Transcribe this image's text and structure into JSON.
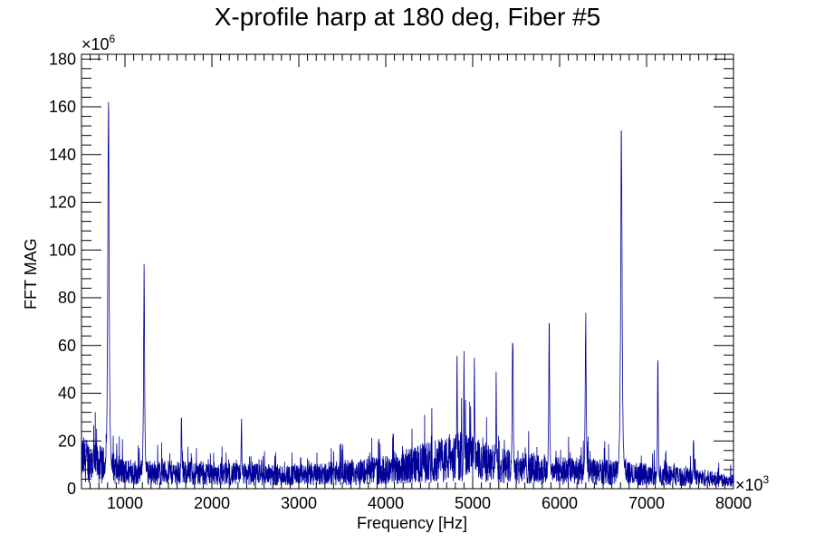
{
  "chart_data": {
    "type": "line",
    "title": "X-profile harp at 180 deg, Fiber #5",
    "xlabel": "Frequency [Hz]",
    "ylabel": "FFT MAG",
    "xlim": [
      500,
      8000
    ],
    "ylim": [
      0,
      182
    ],
    "x_multiplier": "×10",
    "x_multiplier_exp": "3",
    "y_multiplier": "×10",
    "y_multiplier_exp": "6",
    "x_ticks": [
      1000,
      2000,
      3000,
      4000,
      5000,
      6000,
      7000,
      8000
    ],
    "y_ticks": [
      0,
      20,
      40,
      60,
      80,
      100,
      120,
      140,
      160,
      180
    ],
    "line_color": "#000099",
    "peaks": [
      {
        "x": 810,
        "y": 174
      },
      {
        "x": 1220,
        "y": 97
      },
      {
        "x": 1650,
        "y": 35
      },
      {
        "x": 2340,
        "y": 32
      },
      {
        "x": 4820,
        "y": 60
      },
      {
        "x": 4900,
        "y": 59
      },
      {
        "x": 5020,
        "y": 60
      },
      {
        "x": 5270,
        "y": 50
      },
      {
        "x": 5460,
        "y": 72
      },
      {
        "x": 5880,
        "y": 72
      },
      {
        "x": 6300,
        "y": 78
      },
      {
        "x": 6710,
        "y": 169
      },
      {
        "x": 7130,
        "y": 57
      },
      {
        "x": 7540,
        "y": 23
      }
    ],
    "noise_floor": [
      {
        "x": 500,
        "y": 18
      },
      {
        "x": 1000,
        "y": 10
      },
      {
        "x": 2000,
        "y": 9
      },
      {
        "x": 3000,
        "y": 8
      },
      {
        "x": 4000,
        "y": 11
      },
      {
        "x": 4500,
        "y": 16
      },
      {
        "x": 4900,
        "y": 19
      },
      {
        "x": 5200,
        "y": 15
      },
      {
        "x": 5800,
        "y": 11
      },
      {
        "x": 6500,
        "y": 10
      },
      {
        "x": 7500,
        "y": 7
      },
      {
        "x": 8000,
        "y": 5
      }
    ]
  }
}
